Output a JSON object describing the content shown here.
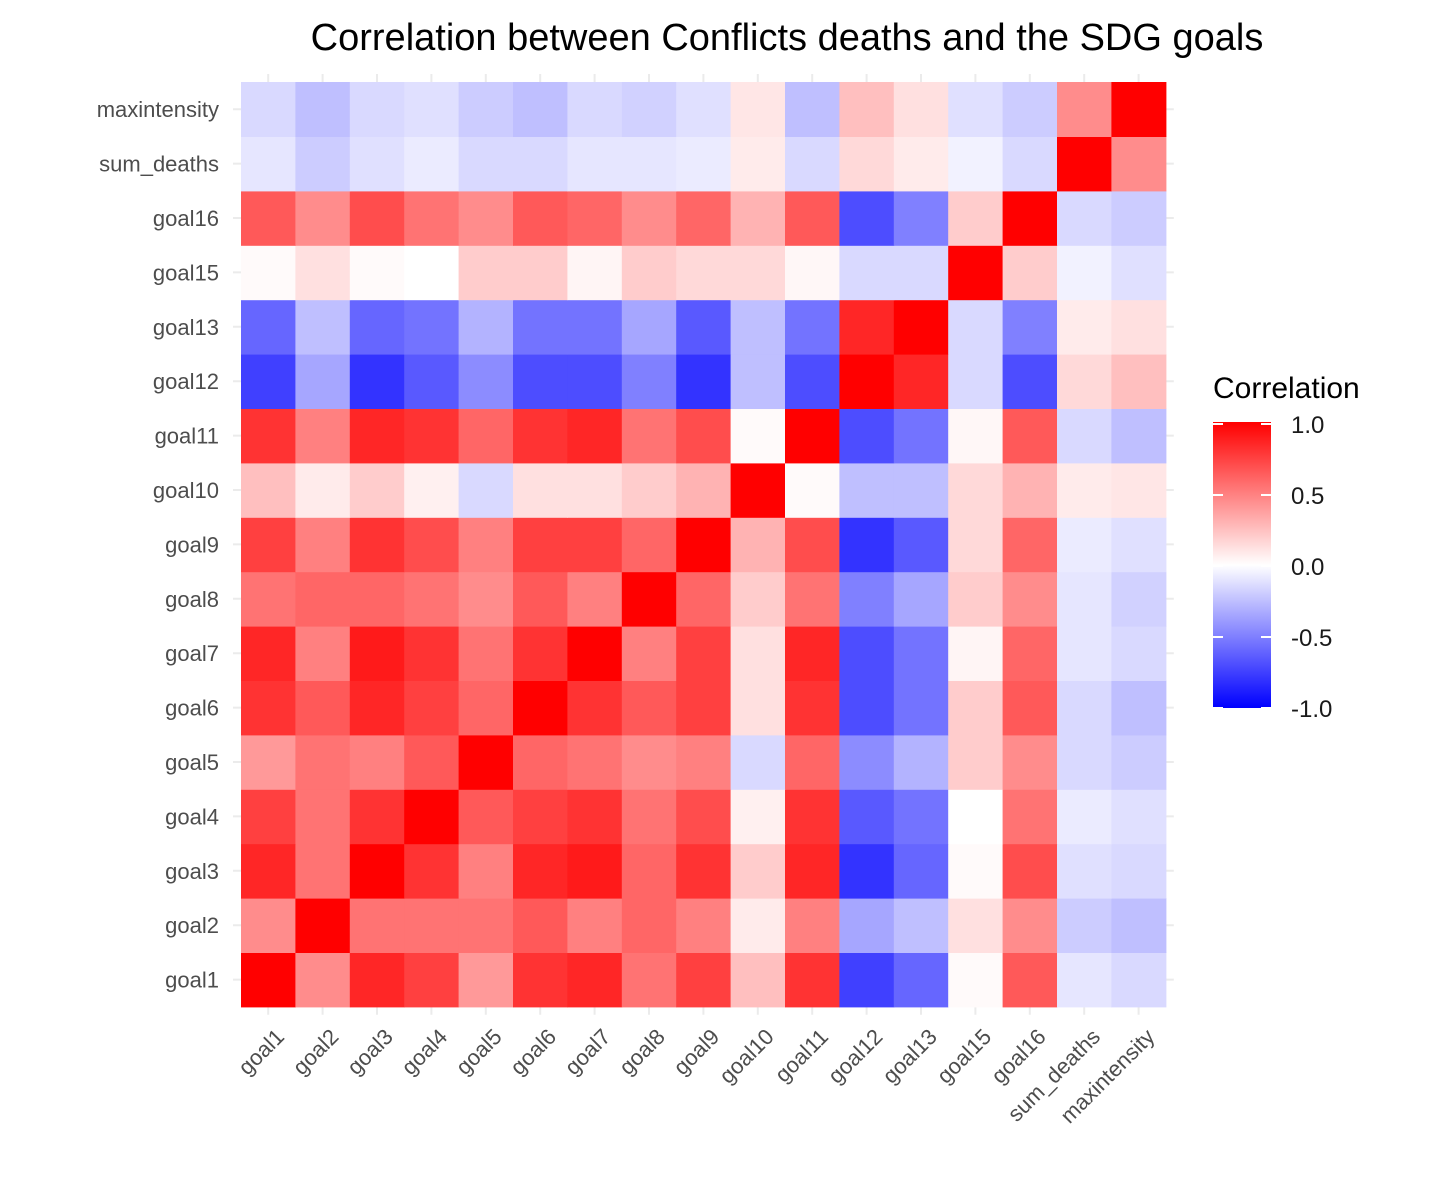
{
  "chart_data": {
    "type": "heatmap",
    "title": "Correlation between Conflicts deaths and the SDG goals",
    "x_labels": [
      "goal1",
      "goal2",
      "goal3",
      "goal4",
      "goal5",
      "goal6",
      "goal7",
      "goal8",
      "goal9",
      "goal10",
      "goal11",
      "goal12",
      "goal13",
      "goal15",
      "goal16",
      "sum_deaths",
      "maxintensity"
    ],
    "y_labels": [
      "goal1",
      "goal2",
      "goal3",
      "goal4",
      "goal5",
      "goal6",
      "goal7",
      "goal8",
      "goal9",
      "goal10",
      "goal11",
      "goal12",
      "goal13",
      "goal15",
      "goal16",
      "sum_deaths",
      "maxintensity"
    ],
    "matrix": [
      [
        1.0,
        0.45,
        0.85,
        0.75,
        0.4,
        0.8,
        0.85,
        0.55,
        0.75,
        0.25,
        0.8,
        -0.75,
        -0.6,
        0.02,
        0.65,
        -0.1,
        -0.15
      ],
      [
        0.45,
        1.0,
        0.55,
        0.55,
        0.55,
        0.65,
        0.5,
        0.6,
        0.5,
        0.08,
        0.5,
        -0.35,
        -0.25,
        0.12,
        0.45,
        -0.2,
        -0.25
      ],
      [
        0.85,
        0.55,
        1.0,
        0.8,
        0.5,
        0.85,
        0.9,
        0.6,
        0.8,
        0.2,
        0.85,
        -0.8,
        -0.6,
        0.02,
        0.7,
        -0.12,
        -0.15
      ],
      [
        0.75,
        0.55,
        0.8,
        1.0,
        0.65,
        0.75,
        0.8,
        0.55,
        0.7,
        0.06,
        0.8,
        -0.65,
        -0.55,
        0.0,
        0.55,
        -0.08,
        -0.12
      ],
      [
        0.4,
        0.55,
        0.5,
        0.65,
        1.0,
        0.6,
        0.55,
        0.45,
        0.5,
        -0.15,
        0.6,
        -0.45,
        -0.3,
        0.2,
        0.45,
        -0.15,
        -0.2
      ],
      [
        0.8,
        0.65,
        0.85,
        0.75,
        0.6,
        1.0,
        0.8,
        0.65,
        0.75,
        0.12,
        0.8,
        -0.7,
        -0.55,
        0.2,
        0.65,
        -0.15,
        -0.25
      ],
      [
        0.85,
        0.5,
        0.9,
        0.8,
        0.55,
        0.8,
        1.0,
        0.5,
        0.75,
        0.12,
        0.85,
        -0.7,
        -0.55,
        0.04,
        0.6,
        -0.1,
        -0.15
      ],
      [
        0.55,
        0.6,
        0.6,
        0.55,
        0.45,
        0.65,
        0.5,
        1.0,
        0.6,
        0.2,
        0.55,
        -0.5,
        -0.35,
        0.2,
        0.45,
        -0.1,
        -0.18
      ],
      [
        0.75,
        0.5,
        0.8,
        0.7,
        0.5,
        0.75,
        0.75,
        0.6,
        1.0,
        0.3,
        0.7,
        -0.8,
        -0.65,
        0.15,
        0.6,
        -0.08,
        -0.12
      ],
      [
        0.25,
        0.08,
        0.2,
        0.06,
        -0.15,
        0.12,
        0.12,
        0.2,
        0.3,
        1.0,
        0.02,
        -0.25,
        -0.25,
        0.15,
        0.3,
        0.08,
        0.1
      ],
      [
        0.8,
        0.5,
        0.85,
        0.8,
        0.6,
        0.8,
        0.85,
        0.55,
        0.7,
        0.02,
        1.0,
        -0.7,
        -0.55,
        0.03,
        0.65,
        -0.15,
        -0.25
      ],
      [
        -0.75,
        -0.35,
        -0.8,
        -0.65,
        -0.45,
        -0.7,
        -0.7,
        -0.5,
        -0.8,
        -0.25,
        -0.7,
        1.0,
        0.85,
        -0.15,
        -0.7,
        0.15,
        0.25
      ],
      [
        -0.6,
        -0.25,
        -0.6,
        -0.55,
        -0.3,
        -0.55,
        -0.55,
        -0.35,
        -0.65,
        -0.25,
        -0.55,
        0.85,
        1.0,
        -0.15,
        -0.5,
        0.08,
        0.12
      ],
      [
        0.02,
        0.12,
        0.02,
        0.0,
        0.2,
        0.2,
        0.04,
        0.2,
        0.15,
        0.15,
        0.03,
        -0.15,
        -0.15,
        1.0,
        0.2,
        -0.05,
        -0.12
      ],
      [
        0.65,
        0.45,
        0.7,
        0.55,
        0.45,
        0.65,
        0.6,
        0.45,
        0.6,
        0.3,
        0.65,
        -0.7,
        -0.5,
        0.2,
        1.0,
        -0.15,
        -0.2
      ],
      [
        -0.1,
        -0.2,
        -0.12,
        -0.08,
        -0.15,
        -0.15,
        -0.1,
        -0.1,
        -0.08,
        0.08,
        -0.15,
        0.15,
        0.08,
        -0.05,
        -0.15,
        1.0,
        0.45
      ],
      [
        -0.15,
        -0.25,
        -0.15,
        -0.12,
        -0.2,
        -0.25,
        -0.15,
        -0.18,
        -0.12,
        0.1,
        -0.25,
        0.25,
        0.12,
        -0.12,
        -0.2,
        0.45,
        1.0
      ]
    ],
    "colorscale": {
      "low": "#0000FF",
      "mid": "#FFFFFF",
      "high": "#FF0000",
      "limits": [
        -1.0,
        1.0
      ]
    },
    "legend": {
      "title": "Correlation",
      "position": "right",
      "ticks": [
        1.0,
        0.5,
        0.0,
        -0.5,
        -1.0
      ],
      "tick_labels": [
        "1.0",
        "0.5",
        "0.0",
        "-0.5",
        "-1.0"
      ]
    },
    "grid": true
  }
}
